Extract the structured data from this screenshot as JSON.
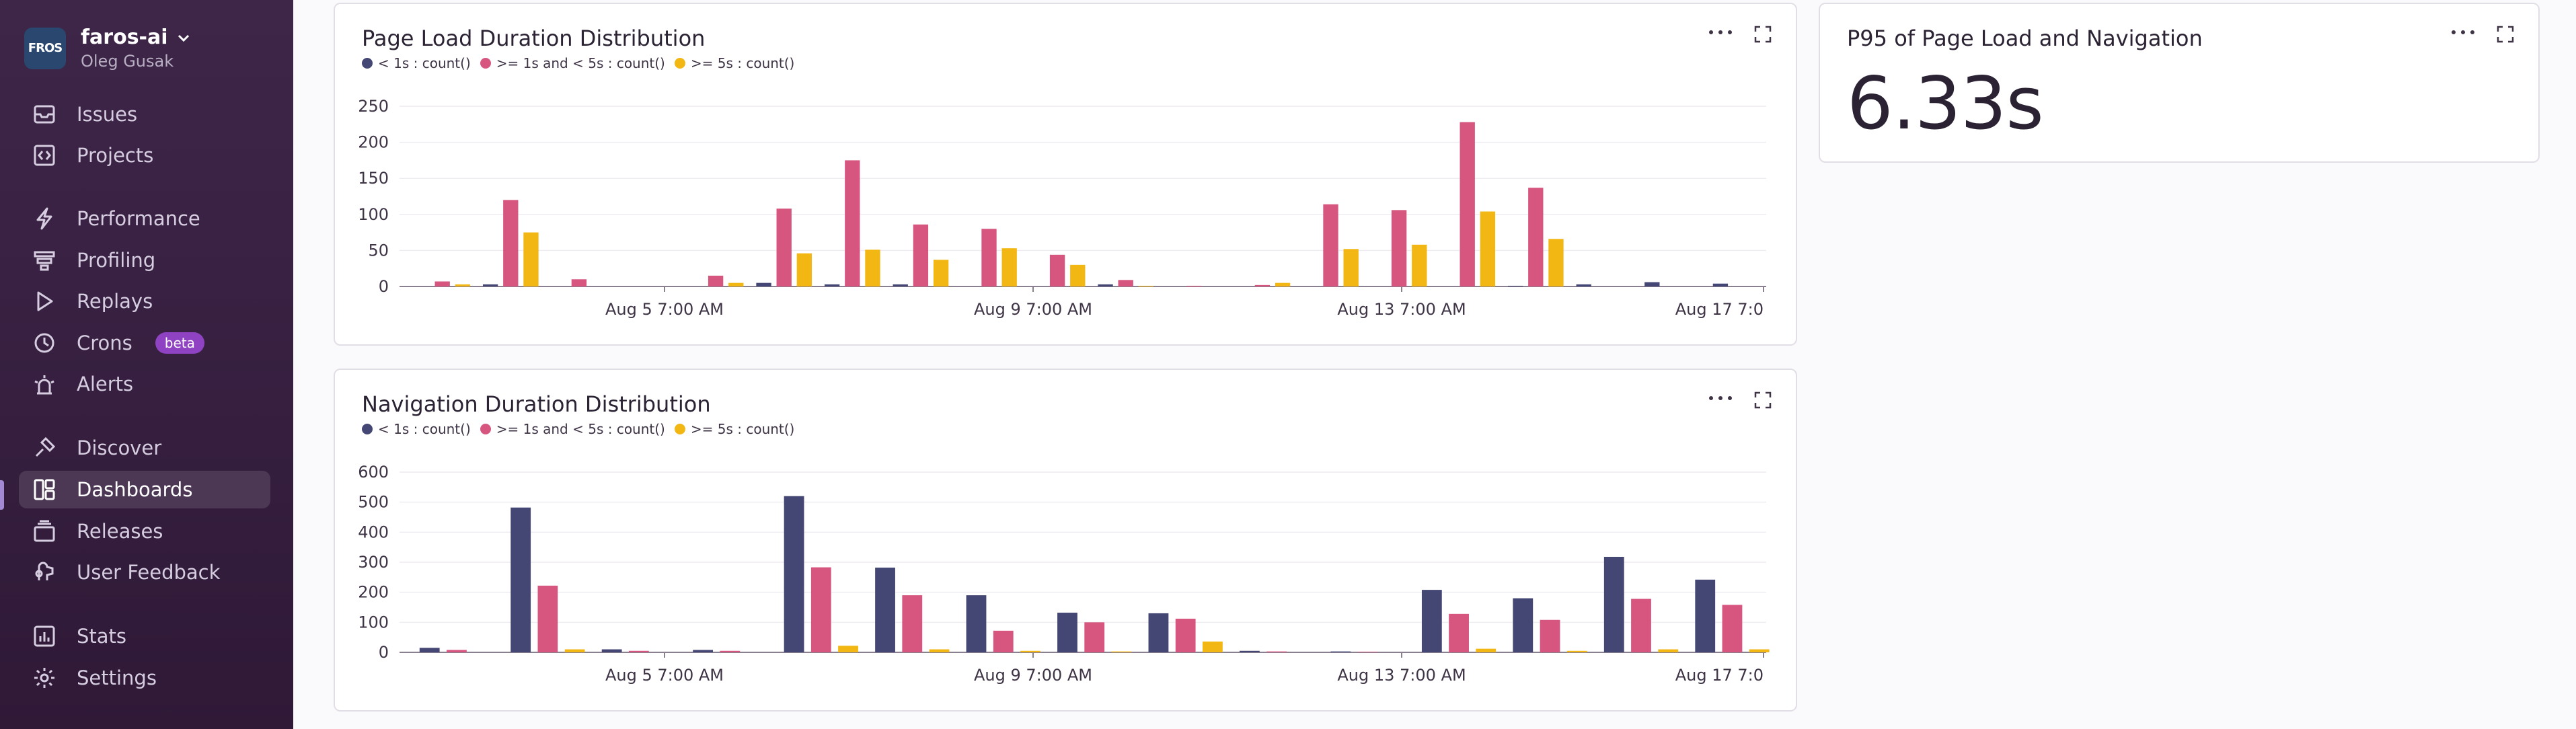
{
  "sidebar": {
    "org_name": "faros-ai",
    "org_logo_text": "FROS",
    "user_name": "Oleg Gusak",
    "items": [
      {
        "label": "Issues",
        "icon": "issues-icon"
      },
      {
        "label": "Projects",
        "icon": "projects-icon"
      },
      {
        "label": "Performance",
        "icon": "performance-icon"
      },
      {
        "label": "Profiling",
        "icon": "profiling-icon"
      },
      {
        "label": "Replays",
        "icon": "replays-icon"
      },
      {
        "label": "Crons",
        "icon": "crons-icon",
        "badge": "beta"
      },
      {
        "label": "Alerts",
        "icon": "alerts-icon"
      },
      {
        "label": "Discover",
        "icon": "discover-icon"
      },
      {
        "label": "Dashboards",
        "icon": "dashboards-icon",
        "active": true
      },
      {
        "label": "Releases",
        "icon": "releases-icon"
      },
      {
        "label": "User Feedback",
        "icon": "user-feedback-icon"
      },
      {
        "label": "Stats",
        "icon": "stats-icon"
      },
      {
        "label": "Settings",
        "icon": "settings-icon"
      }
    ]
  },
  "colors": {
    "series_lt1s": "#444674",
    "series_1to5s": "#d6567f",
    "series_gte5s": "#f2b712"
  },
  "widgets": {
    "p95": {
      "title": "P95 of Page Load and Navigation",
      "value": "6.33s"
    }
  },
  "chart_data": [
    {
      "type": "bar",
      "title": "Page Load Duration Distribution",
      "x_tick_labels": [
        "Aug 5 7:00 AM",
        "Aug 9 7:00 AM",
        "Aug 13 7:00 AM",
        "Aug 17 7:0"
      ],
      "y_ticks": [
        0,
        50,
        100,
        150,
        200,
        250
      ],
      "ylim": [
        0,
        250
      ],
      "legend_placement": "top-left",
      "grid": true,
      "series": [
        {
          "name": "< 1s : count()",
          "values": [
            0,
            3,
            0,
            0,
            0,
            5,
            3,
            3,
            0,
            0,
            3,
            0,
            0,
            0,
            0,
            0,
            1,
            3,
            6,
            4
          ]
        },
        {
          "name": ">= 1s and < 5s : count()",
          "values": [
            7,
            120,
            10,
            0,
            15,
            108,
            175,
            86,
            80,
            44,
            9,
            1,
            2,
            114,
            106,
            228,
            137,
            0,
            0,
            0
          ]
        },
        {
          "name": ">= 5s : count()",
          "values": [
            3,
            75,
            0,
            0,
            5,
            46,
            51,
            37,
            53,
            30,
            1,
            0,
            5,
            52,
            58,
            104,
            66,
            0,
            0,
            0
          ]
        }
      ]
    },
    {
      "type": "bar",
      "title": "Navigation Duration Distribution",
      "x_tick_labels": [
        "Aug 5 7:00 AM",
        "Aug 9 7:00 AM",
        "Aug 13 7:00 AM",
        "Aug 17 7:0"
      ],
      "y_ticks": [
        0,
        100,
        200,
        300,
        400,
        500,
        600
      ],
      "ylim": [
        0,
        600
      ],
      "legend_placement": "top-left",
      "grid": true,
      "series": [
        {
          "name": "< 1s : count()",
          "values": [
            15,
            482,
            10,
            8,
            520,
            282,
            190,
            132,
            130,
            5,
            3,
            208,
            180,
            318,
            242
          ]
        },
        {
          "name": ">= 1s and < 5s : count()",
          "values": [
            8,
            222,
            5,
            5,
            283,
            190,
            72,
            100,
            112,
            3,
            2,
            128,
            108,
            178,
            158
          ]
        },
        {
          "name": ">= 5s : count()",
          "values": [
            0,
            10,
            0,
            0,
            22,
            10,
            5,
            3,
            36,
            0,
            0,
            12,
            5,
            10,
            10
          ]
        }
      ]
    }
  ]
}
